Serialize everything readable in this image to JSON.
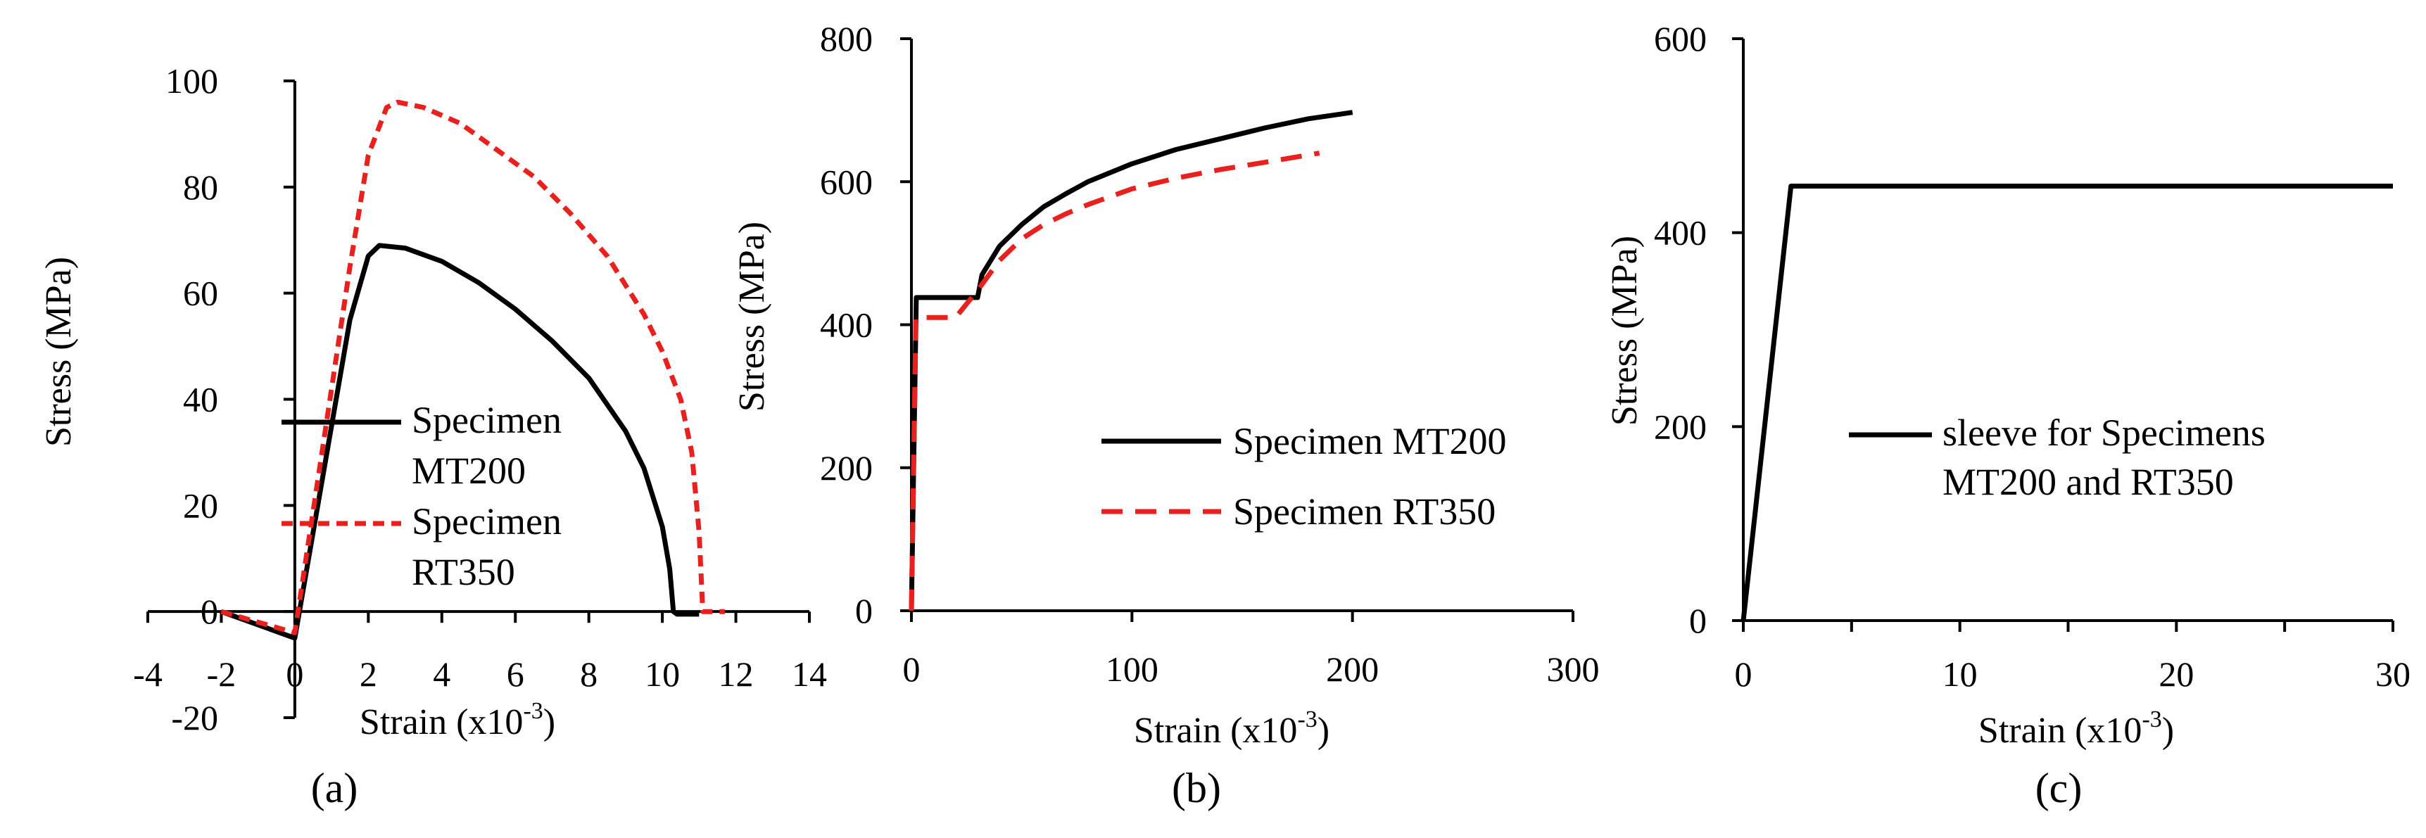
{
  "chart_data": [
    {
      "panel_label": "(a)",
      "type": "line",
      "xlabel": "Strain (x10",
      "xlabel_exp": "-3",
      "xlabel_close": ")",
      "ylabel": "Stress (MPa)",
      "xlim": [
        -4,
        14
      ],
      "ylim": [
        -20,
        100
      ],
      "xticks": [
        -4,
        -2,
        0,
        2,
        4,
        6,
        8,
        10,
        12,
        14
      ],
      "yticks": [
        -20,
        0,
        20,
        40,
        60,
        80,
        100
      ],
      "legend_position": "center-right",
      "series": [
        {
          "name_lines": [
            "Specimen",
            "MT200"
          ],
          "color": "#000000",
          "style": "solid",
          "x": [
            -2.0,
            0.0,
            1.5,
            2.0,
            2.3,
            3.0,
            4.0,
            5.0,
            6.0,
            7.0,
            8.0,
            9.0,
            9.5,
            10.0,
            10.2,
            10.3,
            10.4,
            11.0
          ],
          "y": [
            0,
            -5,
            55,
            67,
            69,
            68.5,
            66,
            62,
            57,
            51,
            44,
            34,
            27,
            16,
            8,
            0,
            -0.5,
            -0.5
          ]
        },
        {
          "name_lines": [
            "Specimen",
            "RT350"
          ],
          "color": "#e8211e",
          "style": "dashed",
          "x": [
            -2.0,
            0.0,
            1.5,
            2.0,
            2.5,
            2.8,
            3.5,
            4.5,
            5.5,
            6.5,
            7.5,
            8.5,
            9.5,
            10.0,
            10.5,
            10.8,
            11.0,
            11.1,
            11.7
          ],
          "y": [
            0,
            -4,
            65,
            86,
            95,
            96,
            95,
            92,
            87,
            82,
            75,
            67,
            56,
            49,
            40,
            30,
            15,
            0,
            0
          ]
        }
      ]
    },
    {
      "panel_label": "(b)",
      "type": "line",
      "xlabel": "Strain (x10",
      "xlabel_exp": "-3",
      "xlabel_close": ")",
      "ylabel": "Stress (MPa)",
      "xlim": [
        0,
        300
      ],
      "ylim": [
        0,
        800
      ],
      "xticks": [
        0,
        100,
        200,
        300
      ],
      "yticks": [
        0,
        200,
        400,
        600,
        800
      ],
      "legend_position": "center-right",
      "series": [
        {
          "name": "Specimen MT200",
          "color": "#000000",
          "style": "solid",
          "x": [
            0,
            2.2,
            30,
            32,
            40,
            50,
            60,
            70,
            80,
            100,
            120,
            140,
            160,
            180,
            200
          ],
          "y": [
            0,
            438,
            438,
            470,
            510,
            540,
            565,
            583,
            600,
            625,
            645,
            660,
            675,
            688,
            697
          ]
        },
        {
          "name": "Specimen RT350",
          "color": "#e8211e",
          "style": "dashed",
          "x": [
            0,
            2,
            20,
            30,
            40,
            50,
            60,
            70,
            80,
            100,
            120,
            140,
            160,
            185
          ],
          "y": [
            0,
            410,
            410,
            448,
            490,
            520,
            540,
            555,
            568,
            590,
            605,
            617,
            627,
            640
          ]
        }
      ]
    },
    {
      "panel_label": "(c)",
      "type": "line",
      "xlabel": "Strain (x10",
      "xlabel_exp": "-3",
      "xlabel_close": ")",
      "ylabel": "Stress (MPa)",
      "xlim": [
        0,
        30
      ],
      "ylim": [
        0,
        600
      ],
      "xticks": [
        0,
        10,
        20,
        30
      ],
      "xminor": [
        5,
        15,
        25
      ],
      "yticks": [
        0,
        200,
        400,
        600
      ],
      "legend_position": "center",
      "series": [
        {
          "name_lines": [
            "sleeve for Specimens",
            "MT200 and RT350"
          ],
          "color": "#000000",
          "style": "solid",
          "x": [
            0,
            2.2,
            30
          ],
          "y": [
            0,
            448,
            448
          ]
        }
      ]
    }
  ]
}
